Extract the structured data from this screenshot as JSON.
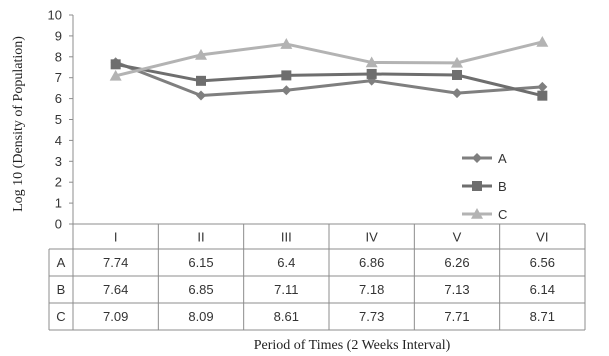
{
  "chart_data": {
    "type": "line",
    "categories": [
      "I",
      "II",
      "III",
      "IV",
      "V",
      "VI"
    ],
    "series": [
      {
        "name": "A",
        "values": [
          7.74,
          6.15,
          6.4,
          6.86,
          6.26,
          6.56
        ],
        "color": "#7f7f7f",
        "marker": "diamond"
      },
      {
        "name": "B",
        "values": [
          7.64,
          6.85,
          7.11,
          7.18,
          7.13,
          6.14
        ],
        "color": "#6e6e6e",
        "marker": "square"
      },
      {
        "name": "C",
        "values": [
          7.09,
          8.09,
          8.61,
          7.73,
          7.71,
          8.71
        ],
        "color": "#b3b3b3",
        "marker": "triangle"
      }
    ],
    "ylabel": "Log 10 (Density of Population)",
    "xlabel": "Period of Times (2 Weeks Interval)",
    "ylim": [
      0,
      10
    ],
    "yticks": [
      "0",
      "1",
      "2",
      "3",
      "4",
      "5",
      "6",
      "7",
      "8",
      "9",
      "10"
    ],
    "table": {
      "rows": [
        {
          "label": "A",
          "cells": [
            "7.74",
            "6.15",
            "6.4",
            "6.86",
            "6.26",
            "6.56"
          ]
        },
        {
          "label": "B",
          "cells": [
            "7.64",
            "6.85",
            "7.11",
            "7.18",
            "7.13",
            "6.14"
          ]
        },
        {
          "label": "C",
          "cells": [
            "7.09",
            "8.09",
            "8.61",
            "7.73",
            "7.71",
            "8.71"
          ]
        }
      ]
    },
    "legend_position": "right"
  }
}
